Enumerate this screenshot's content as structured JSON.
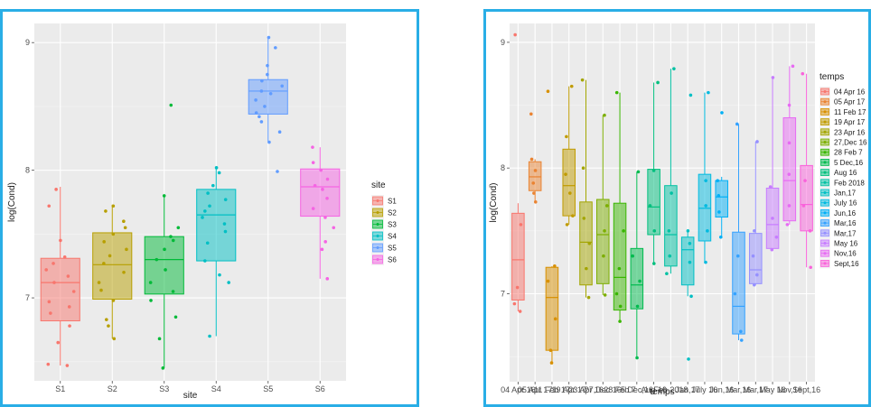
{
  "chart_data": [
    {
      "type": "box",
      "xlabel": "site",
      "ylabel": "log(Cond)",
      "ylim": [
        6.35,
        9.15
      ],
      "yticks": [
        7,
        8,
        9
      ],
      "legend_title": "site",
      "legend_position": "right",
      "grid": true,
      "categories": [
        "S1",
        "S2",
        "S3",
        "S4",
        "S5",
        "S6"
      ],
      "colors": [
        "#F8766D",
        "#B79F00",
        "#00BA38",
        "#00BFC4",
        "#619CFF",
        "#F564E3"
      ],
      "boxes": [
        {
          "q1": 6.82,
          "median": 7.12,
          "q3": 7.31,
          "whislo": 6.47,
          "whishi": 7.87,
          "points": [
            6.47,
            6.48,
            6.65,
            6.78,
            6.88,
            6.93,
            6.97,
            7.05,
            7.12,
            7.17,
            7.22,
            7.27,
            7.32,
            7.45,
            7.72,
            7.85
          ]
        },
        {
          "q1": 6.99,
          "median": 7.26,
          "q3": 7.51,
          "whislo": 6.68,
          "whishi": 7.73,
          "points": [
            6.68,
            6.78,
            6.83,
            6.98,
            7.06,
            7.12,
            7.2,
            7.27,
            7.33,
            7.38,
            7.44,
            7.5,
            7.55,
            7.6,
            7.68,
            7.72
          ]
        },
        {
          "q1": 7.03,
          "median": 7.3,
          "q3": 7.48,
          "whislo": 6.45,
          "whishi": 7.8,
          "points": [
            6.45,
            6.68,
            6.85,
            6.98,
            7.05,
            7.12,
            7.22,
            7.3,
            7.38,
            7.45,
            7.48,
            7.55,
            7.8,
            8.51
          ]
        },
        {
          "q1": 7.29,
          "median": 7.65,
          "q3": 7.85,
          "whislo": 6.7,
          "whishi": 8.03,
          "points": [
            6.7,
            7.12,
            7.18,
            7.29,
            7.43,
            7.52,
            7.58,
            7.63,
            7.68,
            7.72,
            7.77,
            7.82,
            7.88,
            7.98,
            8.02
          ]
        },
        {
          "q1": 8.44,
          "median": 8.62,
          "q3": 8.71,
          "whislo": 8.22,
          "whishi": 9.05,
          "points": [
            7.99,
            8.22,
            8.3,
            8.38,
            8.42,
            8.45,
            8.5,
            8.55,
            8.6,
            8.62,
            8.66,
            8.7,
            8.75,
            8.82,
            8.96,
            9.04
          ]
        },
        {
          "q1": 7.64,
          "median": 7.87,
          "q3": 8.01,
          "whislo": 7.15,
          "whishi": 8.18,
          "points": [
            7.15,
            7.38,
            7.44,
            7.55,
            7.63,
            7.7,
            7.78,
            7.85,
            7.88,
            7.93,
            8.0,
            8.06,
            8.18
          ]
        }
      ]
    },
    {
      "type": "box",
      "xlabel": "temps",
      "ylabel": "log(Cond)",
      "ylim": [
        6.3,
        9.15
      ],
      "yticks": [
        7,
        8,
        9
      ],
      "legend_title": "temps",
      "legend_position": "right",
      "grid": true,
      "categories": [
        "04 Apr 16",
        "05 Apr 17",
        "11 Feb 17",
        "19 Apr 17",
        "23 Apr 16",
        "27,Dec 16",
        "28 Feb 7",
        "5 Dec,16",
        "Aug 16",
        "Feb 2018",
        "Jan,17",
        "July 16",
        "Jun,16",
        "Mar,16",
        "Mar,17",
        "May 16",
        "Nov,16",
        "Sept,16"
      ],
      "legend_labels": [
        "04 Apr 16",
        "05 Apr 17",
        "11 Feb 17",
        "19 Apr 17",
        "23 Apr 16",
        "27,Dec 16",
        "28 Feb 7",
        "5 Dec,16",
        "Aug 16",
        "Feb 2018",
        "Jan,17",
        "July 16",
        "Jun,16",
        "Mar,16",
        "Mar,17",
        "May 16",
        "Nov,16",
        "Sept,16"
      ],
      "colors": [
        "#F8766D",
        "#EA8331",
        "#D89000",
        "#C09B00",
        "#A3A500",
        "#7CAE00",
        "#39B600",
        "#00BB4E",
        "#00BF7D",
        "#00C1A3",
        "#00BFC4",
        "#00BAE0",
        "#00B0F6",
        "#35A2FF",
        "#9590FF",
        "#C77CFF",
        "#E76BF3",
        "#FA62DB"
      ],
      "boxes": [
        {
          "q1": 6.95,
          "median": 7.27,
          "q3": 7.64,
          "whislo": 6.86,
          "whishi": 7.72,
          "points": [
            6.86,
            6.92,
            7.05,
            7.55,
            9.06
          ]
        },
        {
          "q1": 7.82,
          "median": 7.93,
          "q3": 8.05,
          "whislo": 7.73,
          "whishi": 8.07,
          "points": [
            7.73,
            7.8,
            7.88,
            7.98,
            8.07,
            8.43
          ]
        },
        {
          "q1": 6.55,
          "median": 6.97,
          "q3": 7.21,
          "whislo": 6.45,
          "whishi": 7.22,
          "points": [
            6.45,
            6.55,
            6.8,
            7.1,
            7.22,
            8.61
          ]
        },
        {
          "q1": 7.62,
          "median": 7.86,
          "q3": 8.15,
          "whislo": 7.55,
          "whishi": 8.65,
          "points": [
            7.55,
            7.62,
            7.8,
            7.95,
            8.25,
            8.65
          ]
        },
        {
          "q1": 7.07,
          "median": 7.41,
          "q3": 7.73,
          "whislo": 6.97,
          "whishi": 8.7,
          "points": [
            6.97,
            7.2,
            7.4,
            7.6,
            8.0,
            8.7
          ]
        },
        {
          "q1": 7.08,
          "median": 7.47,
          "q3": 7.75,
          "whislo": 6.99,
          "whishi": 8.42,
          "points": [
            6.99,
            7.3,
            7.5,
            7.7,
            8.42
          ]
        },
        {
          "q1": 6.87,
          "median": 7.13,
          "q3": 7.72,
          "whislo": 6.78,
          "whishi": 8.6,
          "points": [
            6.78,
            6.9,
            7.0,
            7.2,
            7.5,
            8.6
          ]
        },
        {
          "q1": 6.88,
          "median": 7.07,
          "q3": 7.36,
          "whislo": 6.49,
          "whishi": 7.97,
          "points": [
            6.49,
            6.9,
            7.1,
            7.3,
            7.97
          ]
        },
        {
          "q1": 7.47,
          "median": 7.69,
          "q3": 7.99,
          "whislo": 7.24,
          "whishi": 8.68,
          "points": [
            7.24,
            7.5,
            7.7,
            7.98,
            8.68
          ]
        },
        {
          "q1": 7.22,
          "median": 7.47,
          "q3": 7.86,
          "whislo": 7.16,
          "whishi": 8.79,
          "points": [
            7.16,
            7.3,
            7.5,
            7.8,
            8.79
          ]
        },
        {
          "q1": 7.07,
          "median": 7.35,
          "q3": 7.45,
          "whislo": 6.98,
          "whishi": 7.51,
          "points": [
            6.48,
            6.98,
            7.25,
            7.4,
            7.5,
            8.58
          ]
        },
        {
          "q1": 7.42,
          "median": 7.68,
          "q3": 7.95,
          "whislo": 7.25,
          "whishi": 8.6,
          "points": [
            7.25,
            7.5,
            7.7,
            7.9,
            8.6
          ]
        },
        {
          "q1": 7.61,
          "median": 7.77,
          "q3": 7.9,
          "whislo": 7.45,
          "whishi": 7.93,
          "points": [
            7.45,
            7.65,
            7.78,
            7.9,
            8.44
          ]
        },
        {
          "q1": 6.68,
          "median": 6.9,
          "q3": 7.49,
          "whislo": 6.63,
          "whishi": 8.35,
          "points": [
            6.63,
            6.7,
            7.0,
            7.3,
            8.35
          ]
        },
        {
          "q1": 7.08,
          "median": 7.19,
          "q3": 7.48,
          "whislo": 7.07,
          "whishi": 8.21,
          "points": [
            7.07,
            7.15,
            7.3,
            7.5,
            8.21
          ]
        },
        {
          "q1": 7.36,
          "median": 7.55,
          "q3": 7.84,
          "whislo": 7.35,
          "whishi": 8.72,
          "points": [
            7.35,
            7.45,
            7.6,
            7.85,
            8.72
          ]
        },
        {
          "q1": 7.58,
          "median": 7.9,
          "q3": 8.4,
          "whislo": 7.55,
          "whishi": 8.81,
          "points": [
            7.55,
            7.7,
            7.95,
            8.2,
            8.5,
            8.81
          ]
        },
        {
          "q1": 7.5,
          "median": 7.71,
          "q3": 8.02,
          "whislo": 7.21,
          "whishi": 8.75,
          "points": [
            7.21,
            7.5,
            7.7,
            7.9,
            8.75
          ]
        }
      ]
    }
  ]
}
